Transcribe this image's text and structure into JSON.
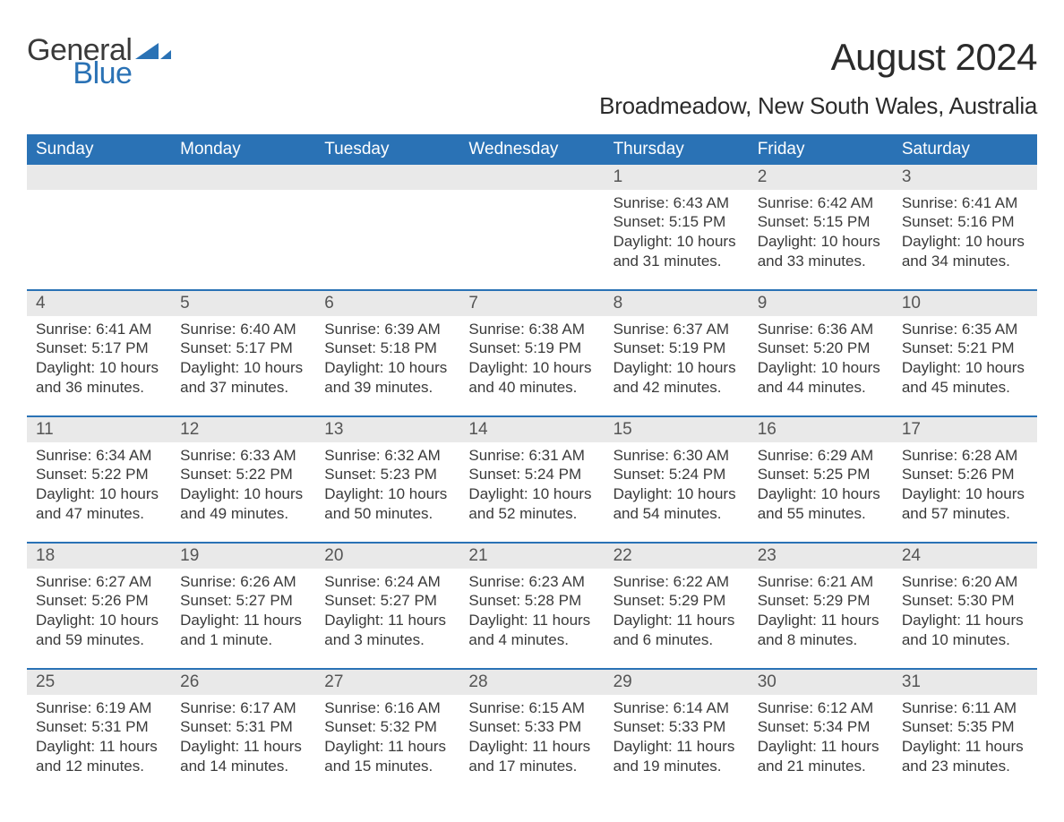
{
  "logo": {
    "word1": "General",
    "word2": "Blue",
    "mark_color": "#2a72b5",
    "text_color_dark": "#3a3a3a"
  },
  "title": "August 2024",
  "subtitle": "Broadmeadow, New South Wales, Australia",
  "colors": {
    "header_bg": "#2a72b5",
    "header_text": "#ffffff",
    "daynum_bg": "#e9e9e9",
    "rule": "#2a72b5",
    "body_text": "#3a3a3a",
    "page_bg": "#ffffff"
  },
  "fonts": {
    "title_size": 42,
    "subtitle_size": 26,
    "header_size": 19,
    "daynum_size": 19,
    "body_size": 17
  },
  "day_headers": [
    "Sunday",
    "Monday",
    "Tuesday",
    "Wednesday",
    "Thursday",
    "Friday",
    "Saturday"
  ],
  "weeks": [
    {
      "nums": [
        "",
        "",
        "",
        "",
        "1",
        "2",
        "3"
      ],
      "lines": [
        [
          "",
          "",
          "",
          ""
        ],
        [
          "",
          "",
          "",
          ""
        ],
        [
          "",
          "",
          "",
          ""
        ],
        [
          "",
          "",
          "",
          ""
        ],
        [
          "Sunrise: 6:43 AM",
          "Sunset: 5:15 PM",
          "Daylight: 10 hours",
          "and 31 minutes."
        ],
        [
          "Sunrise: 6:42 AM",
          "Sunset: 5:15 PM",
          "Daylight: 10 hours",
          "and 33 minutes."
        ],
        [
          "Sunrise: 6:41 AM",
          "Sunset: 5:16 PM",
          "Daylight: 10 hours",
          "and 34 minutes."
        ]
      ]
    },
    {
      "nums": [
        "4",
        "5",
        "6",
        "7",
        "8",
        "9",
        "10"
      ],
      "lines": [
        [
          "Sunrise: 6:41 AM",
          "Sunset: 5:17 PM",
          "Daylight: 10 hours",
          "and 36 minutes."
        ],
        [
          "Sunrise: 6:40 AM",
          "Sunset: 5:17 PM",
          "Daylight: 10 hours",
          "and 37 minutes."
        ],
        [
          "Sunrise: 6:39 AM",
          "Sunset: 5:18 PM",
          "Daylight: 10 hours",
          "and 39 minutes."
        ],
        [
          "Sunrise: 6:38 AM",
          "Sunset: 5:19 PM",
          "Daylight: 10 hours",
          "and 40 minutes."
        ],
        [
          "Sunrise: 6:37 AM",
          "Sunset: 5:19 PM",
          "Daylight: 10 hours",
          "and 42 minutes."
        ],
        [
          "Sunrise: 6:36 AM",
          "Sunset: 5:20 PM",
          "Daylight: 10 hours",
          "and 44 minutes."
        ],
        [
          "Sunrise: 6:35 AM",
          "Sunset: 5:21 PM",
          "Daylight: 10 hours",
          "and 45 minutes."
        ]
      ]
    },
    {
      "nums": [
        "11",
        "12",
        "13",
        "14",
        "15",
        "16",
        "17"
      ],
      "lines": [
        [
          "Sunrise: 6:34 AM",
          "Sunset: 5:22 PM",
          "Daylight: 10 hours",
          "and 47 minutes."
        ],
        [
          "Sunrise: 6:33 AM",
          "Sunset: 5:22 PM",
          "Daylight: 10 hours",
          "and 49 minutes."
        ],
        [
          "Sunrise: 6:32 AM",
          "Sunset: 5:23 PM",
          "Daylight: 10 hours",
          "and 50 minutes."
        ],
        [
          "Sunrise: 6:31 AM",
          "Sunset: 5:24 PM",
          "Daylight: 10 hours",
          "and 52 minutes."
        ],
        [
          "Sunrise: 6:30 AM",
          "Sunset: 5:24 PM",
          "Daylight: 10 hours",
          "and 54 minutes."
        ],
        [
          "Sunrise: 6:29 AM",
          "Sunset: 5:25 PM",
          "Daylight: 10 hours",
          "and 55 minutes."
        ],
        [
          "Sunrise: 6:28 AM",
          "Sunset: 5:26 PM",
          "Daylight: 10 hours",
          "and 57 minutes."
        ]
      ]
    },
    {
      "nums": [
        "18",
        "19",
        "20",
        "21",
        "22",
        "23",
        "24"
      ],
      "lines": [
        [
          "Sunrise: 6:27 AM",
          "Sunset: 5:26 PM",
          "Daylight: 10 hours",
          "and 59 minutes."
        ],
        [
          "Sunrise: 6:26 AM",
          "Sunset: 5:27 PM",
          "Daylight: 11 hours",
          "and 1 minute."
        ],
        [
          "Sunrise: 6:24 AM",
          "Sunset: 5:27 PM",
          "Daylight: 11 hours",
          "and 3 minutes."
        ],
        [
          "Sunrise: 6:23 AM",
          "Sunset: 5:28 PM",
          "Daylight: 11 hours",
          "and 4 minutes."
        ],
        [
          "Sunrise: 6:22 AM",
          "Sunset: 5:29 PM",
          "Daylight: 11 hours",
          "and 6 minutes."
        ],
        [
          "Sunrise: 6:21 AM",
          "Sunset: 5:29 PM",
          "Daylight: 11 hours",
          "and 8 minutes."
        ],
        [
          "Sunrise: 6:20 AM",
          "Sunset: 5:30 PM",
          "Daylight: 11 hours",
          "and 10 minutes."
        ]
      ]
    },
    {
      "nums": [
        "25",
        "26",
        "27",
        "28",
        "29",
        "30",
        "31"
      ],
      "lines": [
        [
          "Sunrise: 6:19 AM",
          "Sunset: 5:31 PM",
          "Daylight: 11 hours",
          "and 12 minutes."
        ],
        [
          "Sunrise: 6:17 AM",
          "Sunset: 5:31 PM",
          "Daylight: 11 hours",
          "and 14 minutes."
        ],
        [
          "Sunrise: 6:16 AM",
          "Sunset: 5:32 PM",
          "Daylight: 11 hours",
          "and 15 minutes."
        ],
        [
          "Sunrise: 6:15 AM",
          "Sunset: 5:33 PM",
          "Daylight: 11 hours",
          "and 17 minutes."
        ],
        [
          "Sunrise: 6:14 AM",
          "Sunset: 5:33 PM",
          "Daylight: 11 hours",
          "and 19 minutes."
        ],
        [
          "Sunrise: 6:12 AM",
          "Sunset: 5:34 PM",
          "Daylight: 11 hours",
          "and 21 minutes."
        ],
        [
          "Sunrise: 6:11 AM",
          "Sunset: 5:35 PM",
          "Daylight: 11 hours",
          "and 23 minutes."
        ]
      ]
    }
  ]
}
